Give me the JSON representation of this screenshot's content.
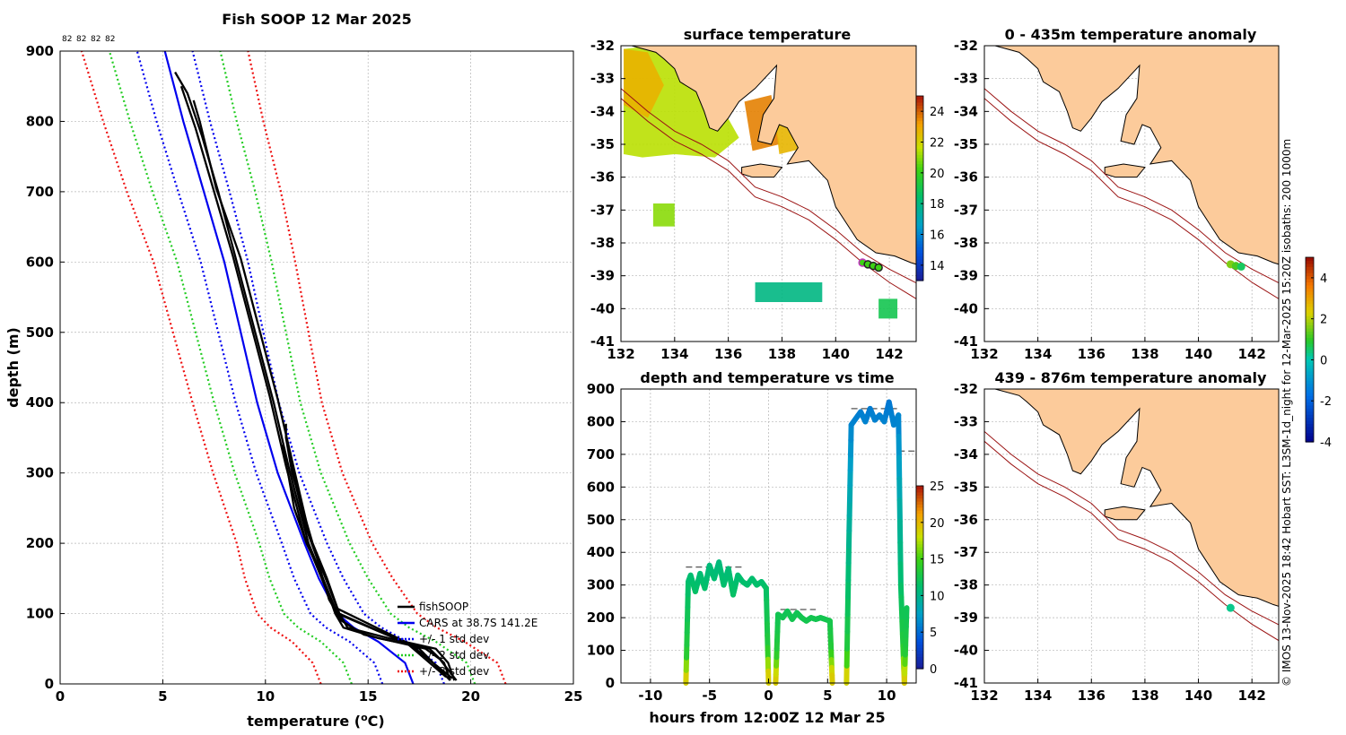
{
  "figure_title": "Fish SOOP 12 Mar 2025",
  "copyright": "© IMOS 13-Nov-2025 18:42 Hobart SST: L3SM-1d_night for 12-Mar-2025 15:20Z isobaths: 200  1000m",
  "colors": {
    "fishsoop": "#000000",
    "cars": "#0000ee",
    "std1": "#0000ee",
    "std2": "#22cc22",
    "std3": "#ee1111",
    "land": "#fccb9b",
    "coast": "#000000",
    "isobath": "#9b1414",
    "grid": "#b4b4b4"
  },
  "chart_data": [
    {
      "type": "line",
      "panel": "profile",
      "title": "Fish SOOP 12 Mar 2025",
      "top_labels": [
        "82",
        "82",
        "82",
        "82"
      ],
      "xlabel": "temperature (",
      "xlabel_sup": "o",
      "xlabel_tail": "C)",
      "ylabel": "depth (m)",
      "xlim": [
        0,
        25
      ],
      "ylim": [
        900,
        0
      ],
      "xticks": [
        0,
        5,
        10,
        15,
        20,
        25
      ],
      "yticks": [
        0,
        100,
        200,
        300,
        400,
        500,
        600,
        700,
        800,
        900
      ],
      "legend": {
        "position": "bottom-right",
        "entries": [
          {
            "label": "fishSOOP",
            "style": "solid",
            "color": "#000000"
          },
          {
            "label": "CARS at 38.7S 141.2E",
            "style": "solid",
            "color": "#0000ee"
          },
          {
            "label": "+/- 1 std dev",
            "style": "dotted",
            "color": "#0000ee"
          },
          {
            "label": "+/- 2 std dev",
            "style": "dotted",
            "color": "#22cc22"
          },
          {
            "label": "+/- 3 std dev",
            "style": "dotted",
            "color": "#ee1111"
          }
        ]
      },
      "cars_depth": [
        0,
        30,
        60,
        80,
        100,
        150,
        200,
        300,
        400,
        500,
        600,
        700,
        800,
        900
      ],
      "cars_mean": [
        17.2,
        16.8,
        15.5,
        14.3,
        13.5,
        12.6,
        11.9,
        10.6,
        9.6,
        8.8,
        8.0,
        7.0,
        6.0,
        5.1
      ],
      "cars_std": [
        1.5,
        1.5,
        1.4,
        1.35,
        1.3,
        1.2,
        1.1,
        1.05,
        1.05,
        1.1,
        1.15,
        1.25,
        1.3,
        1.35
      ],
      "fishsoop_casts": [
        {
          "depth": [
            5,
            30,
            50,
            65,
            80,
            100,
            150,
            200,
            250,
            300,
            350,
            370
          ],
          "temp": [
            19.2,
            18.9,
            18.3,
            16.0,
            14.0,
            13.6,
            13.0,
            12.3,
            11.8,
            11.3,
            11.0,
            11.0
          ]
        },
        {
          "depth": [
            5,
            30,
            50,
            65,
            80,
            100,
            150,
            200,
            250,
            300,
            340
          ],
          "temp": [
            19.0,
            18.7,
            18.0,
            15.5,
            13.8,
            13.4,
            12.8,
            12.0,
            11.4,
            11.1,
            10.8
          ]
        },
        {
          "depth": [
            5,
            35,
            50,
            70,
            90,
            120,
            180,
            220,
            280,
            330
          ],
          "temp": [
            19.3,
            18.5,
            17.8,
            14.8,
            13.7,
            13.1,
            12.5,
            12.0,
            11.5,
            11.2
          ]
        },
        {
          "depth": [
            5,
            50,
            100,
            200,
            300,
            400,
            500,
            600,
            700,
            780,
            840,
            870
          ],
          "temp": [
            19.0,
            17.5,
            13.5,
            12.1,
            11.2,
            10.4,
            9.5,
            8.6,
            7.7,
            6.9,
            6.2,
            5.6
          ]
        },
        {
          "depth": [
            10,
            60,
            110,
            210,
            310,
            410,
            510,
            610,
            710,
            790,
            850
          ],
          "temp": [
            18.8,
            16.8,
            13.3,
            11.9,
            11.0,
            10.2,
            9.3,
            8.4,
            7.4,
            6.6,
            5.9
          ]
        },
        {
          "depth": [
            8,
            55,
            100,
            205,
            305,
            405,
            505,
            605,
            705,
            800,
            830
          ],
          "temp": [
            19.1,
            17.1,
            13.6,
            12.2,
            11.4,
            10.6,
            9.7,
            8.8,
            7.6,
            6.8,
            6.5
          ]
        }
      ]
    },
    {
      "type": "heatmap",
      "panel": "surface",
      "title": "surface temperature",
      "xlim": [
        132,
        143
      ],
      "ylim": [
        -41,
        -32
      ],
      "xticks": [
        132,
        134,
        136,
        138,
        140,
        142
      ],
      "yticks": [
        -32,
        -33,
        -34,
        -35,
        -36,
        -37,
        -38,
        -39,
        -40,
        -41
      ],
      "colorbar": {
        "min": 13,
        "max": 25,
        "ticks": [
          14,
          16,
          18,
          20,
          22,
          24
        ]
      },
      "sst_patches": [
        {
          "lon": [
            132.1,
            133.2,
            134.4,
            135.5,
            136.4,
            135.5,
            134.0,
            132.8,
            132.1
          ],
          "lat": [
            -32.1,
            -32.0,
            -32.8,
            -33.5,
            -34.8,
            -35.4,
            -35.3,
            -35.4,
            -35.3
          ],
          "temp": 21.5
        },
        {
          "lon": [
            132.1,
            133.0,
            133.6,
            133.0,
            132.1
          ],
          "lat": [
            -32.1,
            -32.2,
            -33.2,
            -34.2,
            -33.8
          ],
          "temp": 22.8
        },
        {
          "lon": [
            133.2,
            134.0,
            134.0,
            133.2
          ],
          "lat": [
            -36.8,
            -36.8,
            -37.5,
            -37.5
          ],
          "temp": 21.0
        },
        {
          "lon": [
            137.0,
            139.5,
            139.5,
            137.0
          ],
          "lat": [
            -39.2,
            -39.2,
            -39.8,
            -39.8
          ],
          "temp": 18.0
        },
        {
          "lon": [
            141.6,
            142.3,
            142.3,
            141.6
          ],
          "lat": [
            -39.7,
            -39.7,
            -40.3,
            -40.3
          ],
          "temp": 19.0
        },
        {
          "lon": [
            136.6,
            137.6,
            137.9,
            136.9
          ],
          "lat": [
            -33.7,
            -33.5,
            -35.0,
            -35.2
          ],
          "temp": 23.6
        },
        {
          "lon": [
            137.7,
            138.6,
            138.9,
            137.9
          ],
          "lat": [
            -34.0,
            -34.2,
            -35.1,
            -35.3
          ],
          "temp": 22.7
        }
      ],
      "track": {
        "lon": [
          141.0,
          141.2,
          141.4,
          141.6
        ],
        "lat": [
          -38.6,
          -38.65,
          -38.7,
          -38.75
        ]
      }
    },
    {
      "type": "scatter",
      "panel": "depth_time",
      "title": "depth and temperature vs time",
      "xlabel": "hours from 12:00Z 12 Mar 25",
      "xlim": [
        -12.5,
        12.5
      ],
      "ylim": [
        900,
        0
      ],
      "xticks": [
        -10,
        -5,
        0,
        5,
        10
      ],
      "yticks": [
        0,
        100,
        200,
        300,
        400,
        500,
        600,
        700,
        800,
        900
      ],
      "colorbar": {
        "min": 0,
        "max": 25,
        "ticks": [
          0,
          5,
          10,
          15,
          20,
          25
        ]
      },
      "segments": [
        {
          "t": [
            -7.0,
            -6.8,
            -6.6,
            -6.2,
            -5.8,
            -5.4,
            -5.0,
            -4.6,
            -4.2,
            -3.8,
            -3.4,
            -3.0,
            -2.6,
            -2.2,
            -1.8,
            -1.4,
            -1.0,
            -0.6,
            -0.2,
            0.0
          ],
          "depth": [
            0,
            310,
            330,
            280,
            335,
            290,
            360,
            320,
            370,
            300,
            350,
            270,
            330,
            310,
            300,
            320,
            300,
            310,
            290,
            0
          ]
        },
        {
          "t": [
            0.6,
            0.8,
            1.2,
            1.6,
            2.0,
            2.4,
            2.8,
            3.2,
            3.6,
            4.0,
            4.4,
            4.8,
            5.2,
            5.4
          ],
          "depth": [
            0,
            210,
            200,
            220,
            195,
            215,
            200,
            190,
            200,
            195,
            200,
            195,
            190,
            0
          ]
        },
        {
          "t": [
            6.6,
            6.8,
            7.0,
            7.4,
            7.8,
            8.2,
            8.6,
            9.0,
            9.4,
            9.8,
            10.2,
            10.6,
            11.0,
            11.2,
            11.5,
            11.7
          ],
          "depth": [
            0,
            420,
            790,
            810,
            830,
            800,
            840,
            805,
            820,
            800,
            860,
            790,
            820,
            300,
            0,
            230
          ]
        }
      ],
      "bottom_marks": [
        {
          "t0": -7.0,
          "t1": -2.0,
          "depth": 355
        },
        {
          "t0": 1.0,
          "t1": 4.0,
          "depth": 225
        },
        {
          "t0": 7.0,
          "t1": 11.0,
          "depth": 840
        },
        {
          "t0": 11.0,
          "t1": 12.5,
          "depth": 710
        }
      ]
    },
    {
      "type": "heatmap",
      "panel": "anomaly_upper",
      "title": "0 - 435m temperature anomaly",
      "xlim": [
        132,
        143
      ],
      "ylim": [
        -41,
        -32
      ],
      "xticks": [
        132,
        134,
        136,
        138,
        140,
        142
      ],
      "yticks": [
        -32,
        -33,
        -34,
        -35,
        -36,
        -37,
        -38,
        -39,
        -40,
        -41
      ],
      "colorbar": {
        "min": -4,
        "max": 5,
        "ticks": [
          4,
          2,
          0,
          -2,
          -4
        ]
      },
      "points": [
        {
          "lon": 141.2,
          "lat": -38.65,
          "anomaly": 1.6
        },
        {
          "lon": 141.4,
          "lat": -38.7,
          "anomaly": 1.2
        },
        {
          "lon": 141.6,
          "lat": -38.72,
          "anomaly": 0.6
        }
      ]
    },
    {
      "type": "heatmap",
      "panel": "anomaly_lower",
      "title": "439 - 876m temperature anomaly",
      "xlim": [
        132,
        143
      ],
      "ylim": [
        -41,
        -32
      ],
      "xticks": [
        132,
        134,
        136,
        138,
        140,
        142
      ],
      "yticks": [
        -32,
        -33,
        -34,
        -35,
        -36,
        -37,
        -38,
        -39,
        -40,
        -41
      ],
      "points": [
        {
          "lon": 141.2,
          "lat": -38.7,
          "anomaly": 0.3
        }
      ]
    }
  ]
}
